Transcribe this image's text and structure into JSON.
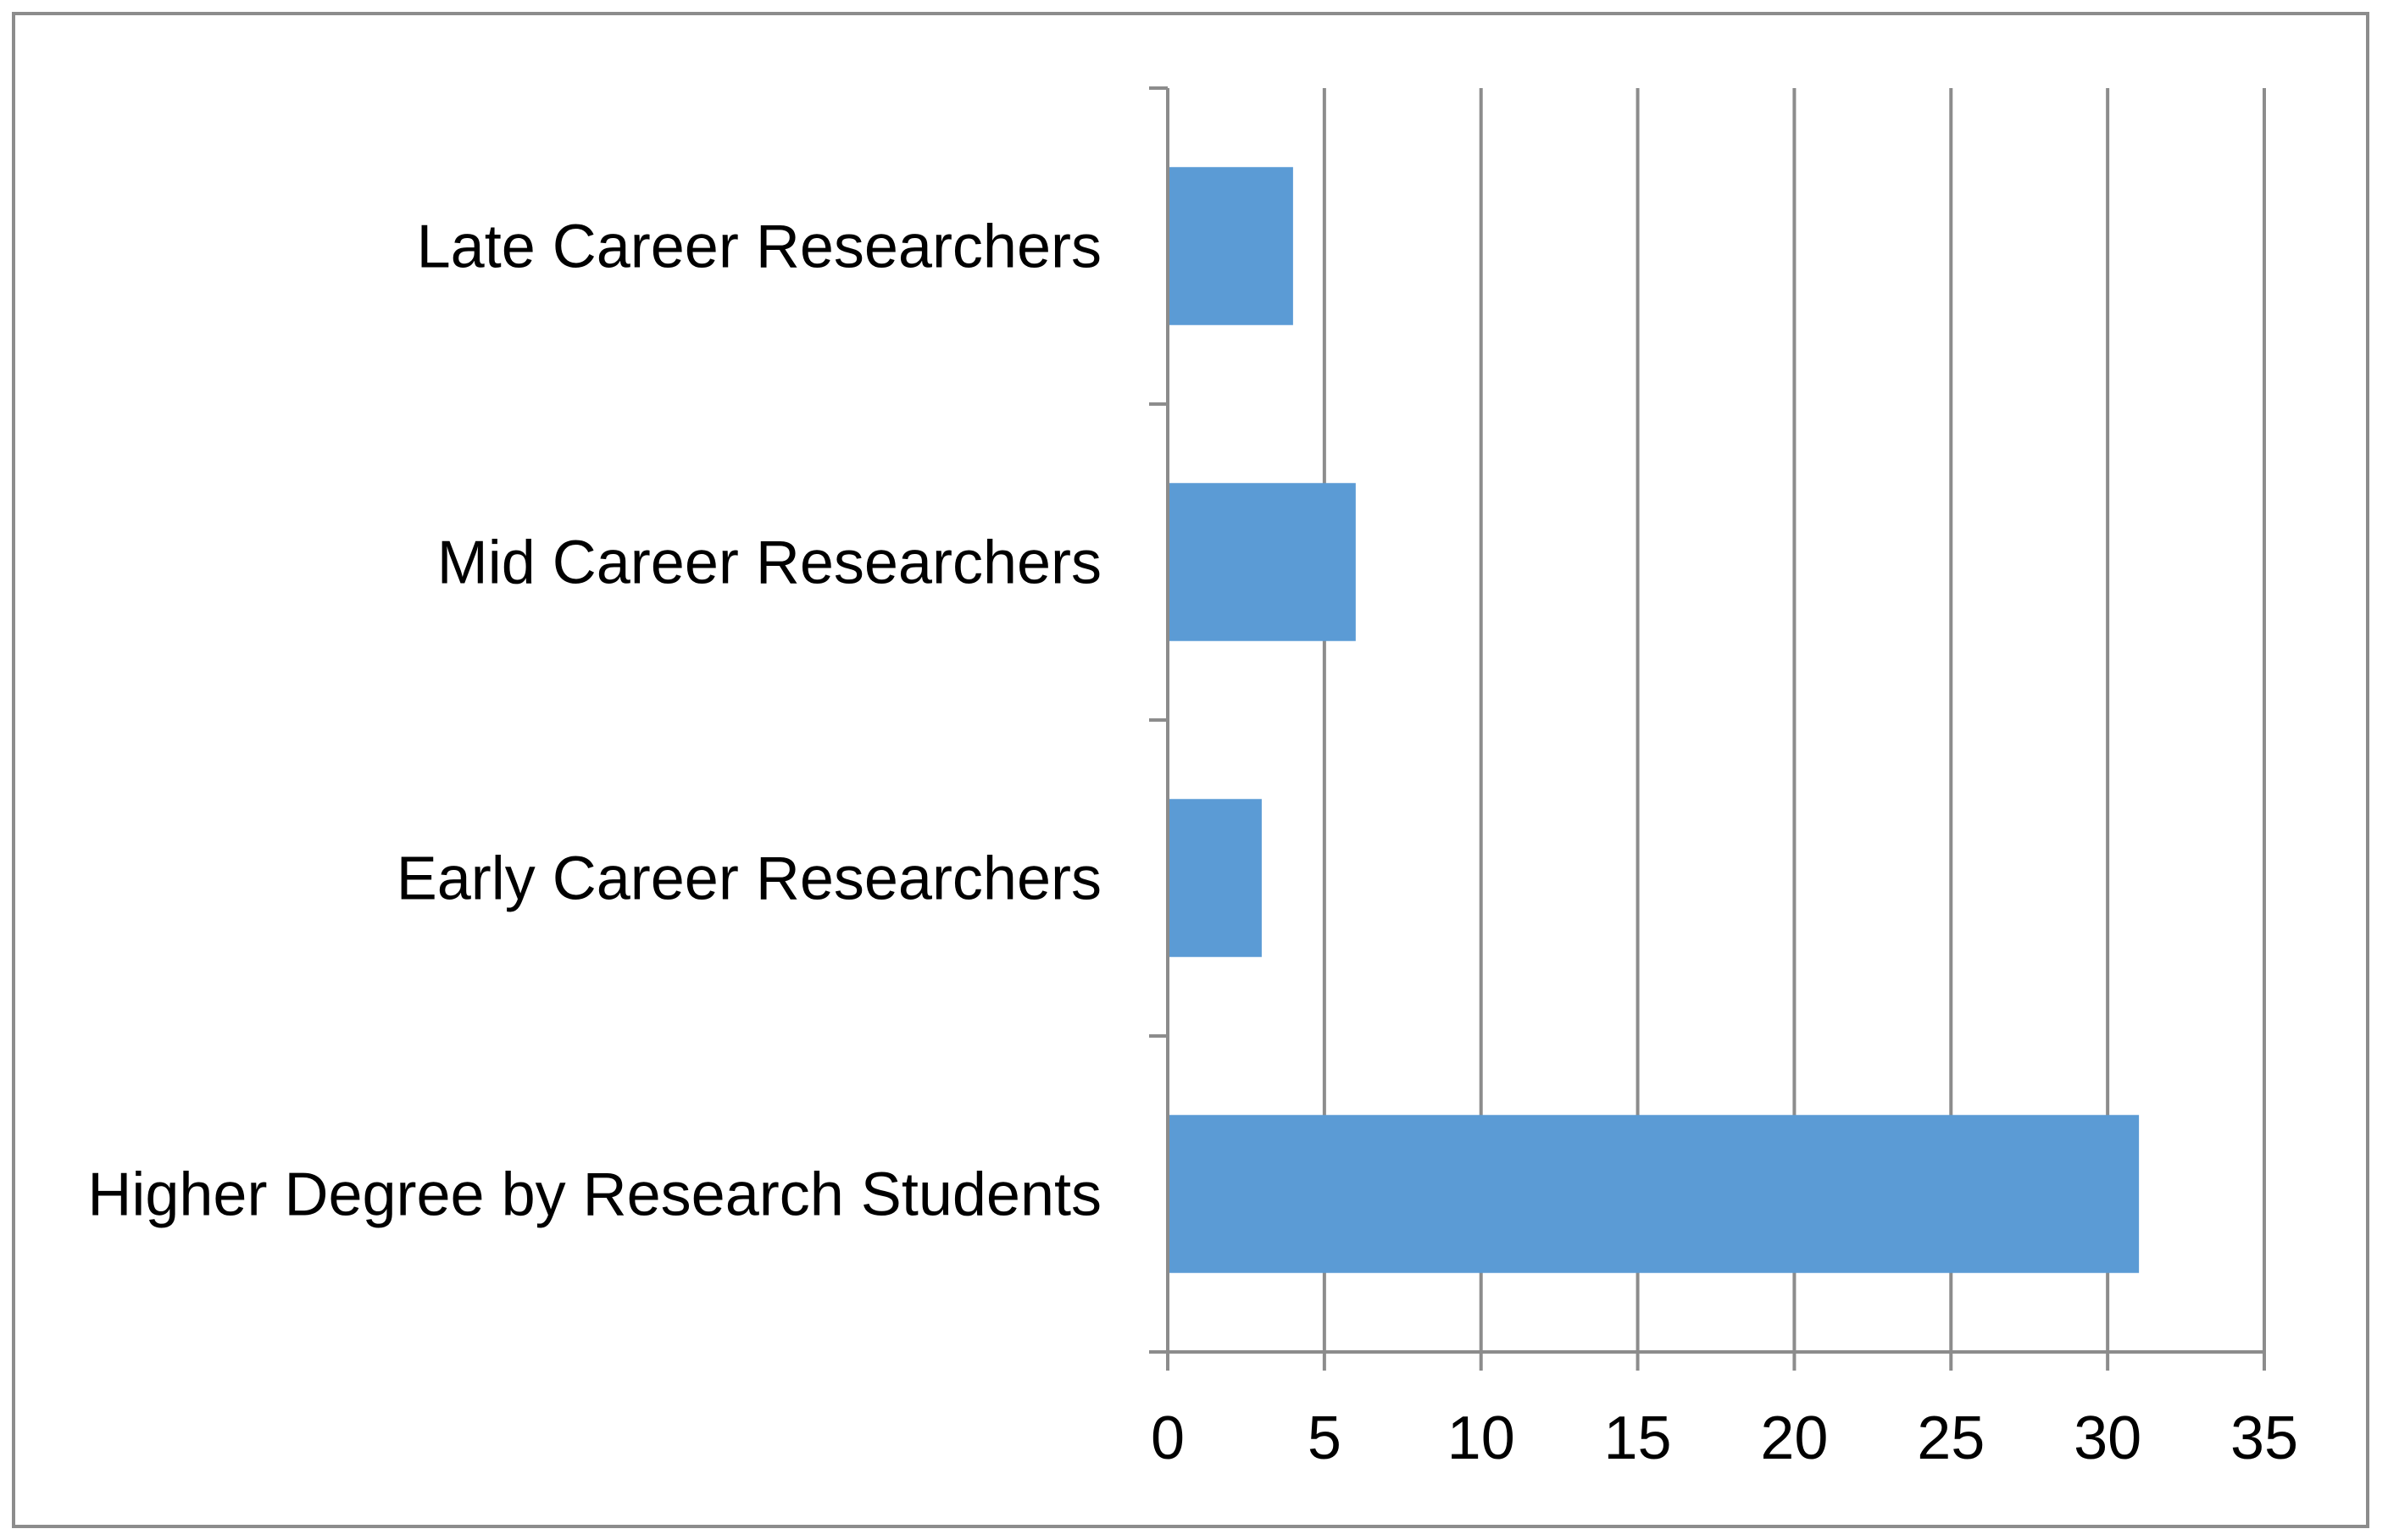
{
  "chart_data": {
    "type": "bar",
    "orientation": "horizontal",
    "title": "",
    "xlabel": "",
    "ylabel": "",
    "categories": [
      "Higher Degree by Research Students",
      "Early Career Researchers",
      "Mid Career Researchers",
      "Late Career Researchers"
    ],
    "series": [
      {
        "values": [
          31,
          3,
          6,
          4
        ],
        "color": "#5b9bd5"
      }
    ],
    "xlim": [
      0,
      35
    ],
    "x_ticks": [
      0,
      5,
      10,
      15,
      20,
      25,
      30,
      35
    ],
    "grid": "vertical",
    "legend": "none",
    "colors": {
      "bar": "#5b9bd5",
      "grid": "#8c8c8c",
      "axis": "#8c8c8c",
      "frame": "#8c8c8c"
    }
  }
}
